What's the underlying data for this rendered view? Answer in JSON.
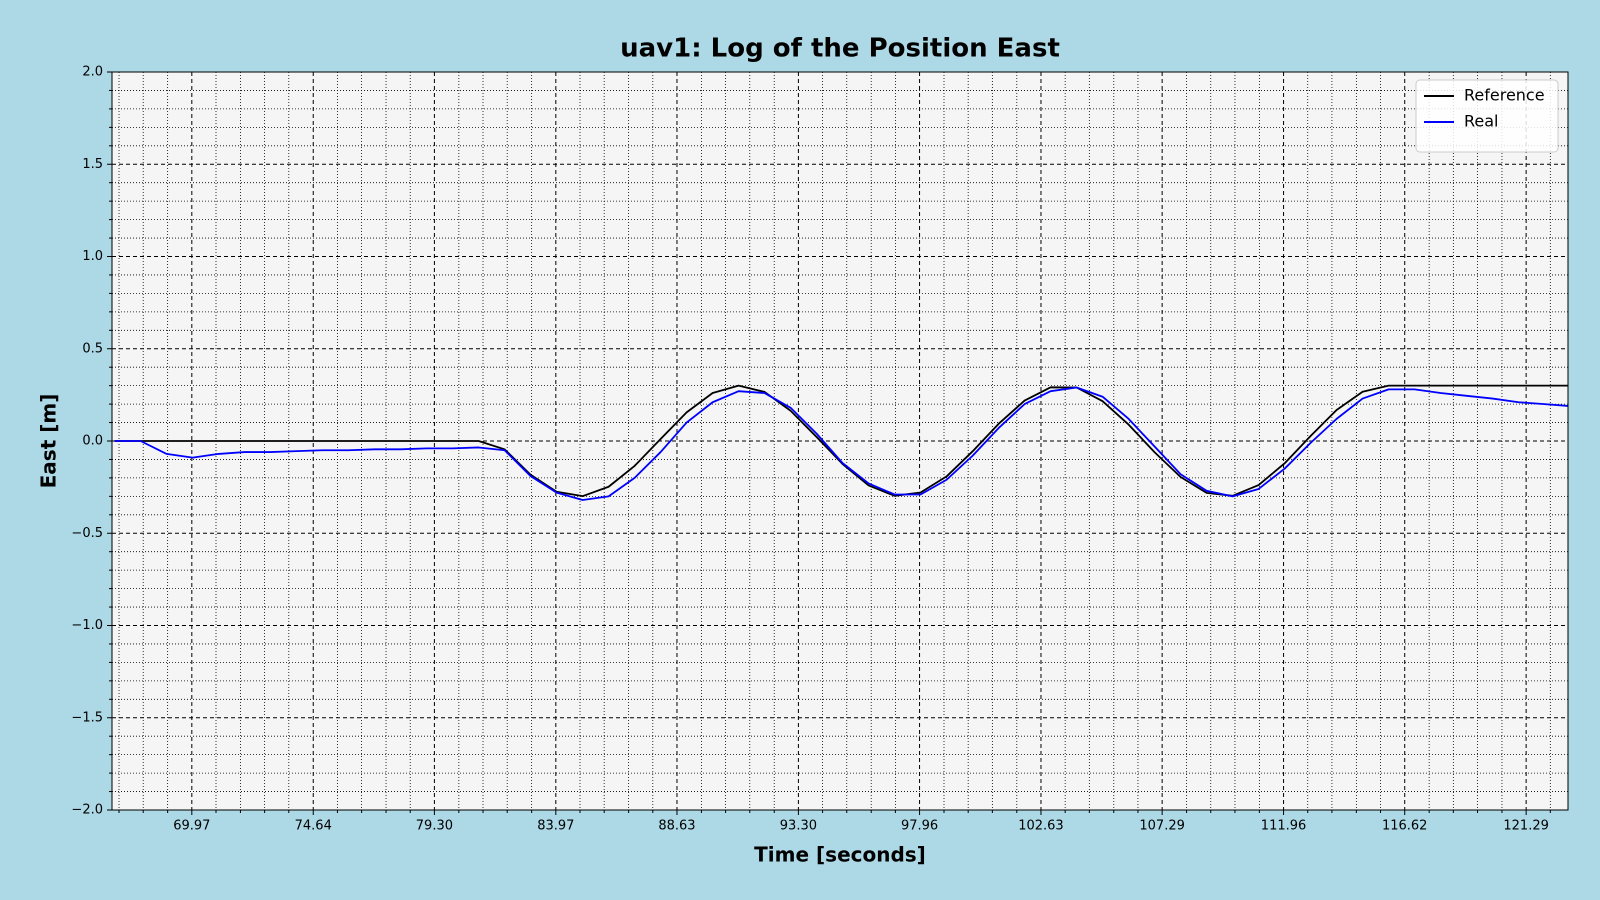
{
  "chart_data": {
    "type": "line",
    "title": "uav1: Log of the Position East",
    "x_label": "Time [seconds]",
    "y_label": "East [m]",
    "x": [
      67,
      68,
      69,
      70,
      71,
      72,
      73,
      74,
      75,
      76,
      77,
      78,
      79,
      80,
      81,
      82,
      83,
      84,
      85,
      86,
      87,
      88,
      89,
      90,
      91,
      92,
      93,
      94,
      95,
      96,
      97,
      98,
      99,
      100,
      101,
      102,
      103,
      104,
      105,
      106,
      107,
      108,
      109,
      110,
      111,
      112,
      113,
      114,
      115,
      116,
      117,
      118,
      119,
      120,
      121,
      122,
      122.9
    ],
    "series": [
      {
        "name": "Reference",
        "color": "#000000",
        "values": [
          0,
          0,
          0,
          0,
          0,
          0,
          0,
          0,
          0,
          0,
          0,
          0,
          0,
          0,
          0,
          -0.045,
          -0.183,
          -0.275,
          -0.299,
          -0.248,
          -0.135,
          0.011,
          0.155,
          0.26,
          0.3,
          0.266,
          0.164,
          0.022,
          -0.125,
          -0.241,
          -0.297,
          -0.279,
          -0.192,
          -0.056,
          0.093,
          0.219,
          0.291,
          0.29,
          0.216,
          0.089,
          -0.061,
          -0.195,
          -0.281,
          -0.297,
          -0.239,
          -0.121,
          0.027,
          0.168,
          0.267,
          0.3,
          0.3,
          0.3,
          0.3,
          0.3,
          0.3,
          0.3,
          0.3
        ]
      },
      {
        "name": "Real",
        "color": "#0000ff",
        "values": [
          0,
          0,
          -0.07,
          -0.09,
          -0.07,
          -0.06,
          -0.06,
          -0.055,
          -0.05,
          -0.05,
          -0.045,
          -0.045,
          -0.04,
          -0.04,
          -0.035,
          -0.05,
          -0.19,
          -0.28,
          -0.32,
          -0.3,
          -0.2,
          -0.06,
          0.1,
          0.21,
          0.27,
          0.26,
          0.18,
          0.04,
          -0.12,
          -0.23,
          -0.29,
          -0.29,
          -0.21,
          -0.08,
          0.07,
          0.2,
          0.27,
          0.29,
          0.24,
          0.12,
          -0.03,
          -0.18,
          -0.27,
          -0.3,
          -0.26,
          -0.15,
          -0.01,
          0.12,
          0.23,
          0.28,
          0.28,
          0.26,
          0.245,
          0.23,
          0.21,
          0.2,
          0.19
        ]
      }
    ],
    "xlim": [
      66.9,
      122.9
    ],
    "ylim": [
      -2,
      2
    ],
    "xticks": [
      69.97,
      74.64,
      {
        "value": 79.3,
        "label": "79.30"
      },
      83.97,
      88.63,
      {
        "value": 93.3,
        "label": "93.30"
      },
      97.96,
      102.63,
      107.29,
      111.96,
      116.62,
      121.29
    ],
    "yticks": [
      {
        "value": -2,
        "label": "−2.0"
      },
      {
        "value": -1.5,
        "label": "−1.5"
      },
      {
        "value": -1,
        "label": "−1.0"
      },
      {
        "value": -0.5,
        "label": "−0.5"
      },
      {
        "value": 0,
        "label": "0.0"
      },
      {
        "value": 0.5,
        "label": "0.5"
      },
      {
        "value": 1,
        "label": "1.0"
      },
      {
        "value": 1.5,
        "label": "1.5"
      },
      {
        "value": 2,
        "label": "2.0"
      }
    ],
    "xminor": [
      67.17,
      68.1,
      69.04,
      70.9,
      71.84,
      72.77,
      73.7,
      75.57,
      76.5,
      77.44,
      78.37,
      80.24,
      81.17,
      82.1,
      83.04,
      84.9,
      85.83,
      86.77,
      87.7,
      89.57,
      90.5,
      91.43,
      92.37,
      94.23,
      95.16,
      96.1,
      97.03,
      98.9,
      99.83,
      100.76,
      101.7,
      103.56,
      104.49,
      105.43,
      106.36,
      108.23,
      109.16,
      110.09,
      111.03,
      112.89,
      113.82,
      114.76,
      115.69,
      117.56,
      118.49,
      119.42,
      120.36,
      122.22
    ],
    "yminor": [
      -1.9,
      -1.8,
      -1.7,
      -1.6,
      -1.4,
      -1.3,
      -1.2,
      -1.1,
      -0.9,
      -0.8,
      -0.7,
      -0.6,
      -0.4,
      -0.3,
      -0.2,
      -0.1,
      0.1,
      0.2,
      0.3,
      0.4,
      0.6,
      0.7,
      0.8,
      0.9,
      1.1,
      1.2,
      1.3,
      1.4,
      1.6,
      1.7,
      1.8,
      1.9
    ],
    "grid": true,
    "legend": "upper right",
    "background": "#f5f5f5"
  }
}
